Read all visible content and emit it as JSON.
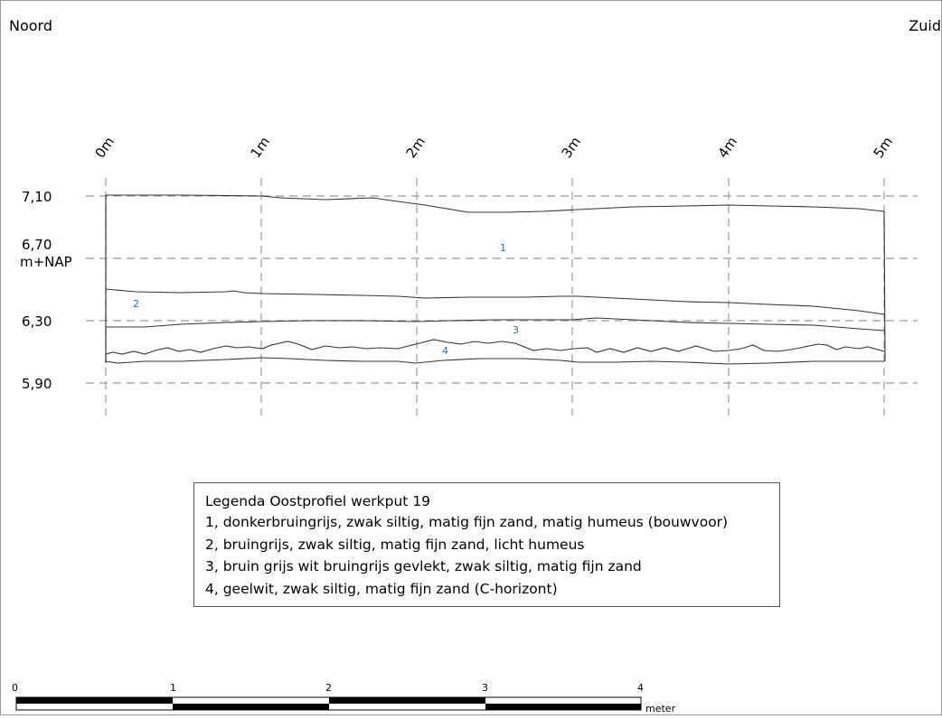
{
  "orientation": {
    "left": "Noord",
    "right": "Zuid"
  },
  "meter_marks": [
    "0m",
    "1m",
    "2m",
    "3m",
    "4m",
    "5m"
  ],
  "elevation_labels": [
    "7,10",
    "6,70",
    "6,30",
    "5,90"
  ],
  "elevation_unit": "m+NAP",
  "layer_numbers": [
    "1",
    "2",
    "3",
    "4"
  ],
  "legend": {
    "title": "Legenda Oostprofiel werkput 19",
    "entries": [
      "1, donkerbruingrijs, zwak siltig, matig fijn zand, matig humeus (bouwvoor)",
      "2, bruingrijs, zwak siltig, matig fijn zand, licht humeus",
      "3, bruin grijs wit bruingrijs gevlekt, zwak siltig, matig fijn zand",
      "4, geelwit, zwak siltig, matig fijn zand (C-horizont)"
    ]
  },
  "scale_bar": {
    "ticks": [
      "0",
      "1",
      "2",
      "3",
      "4"
    ],
    "unit": "meter"
  },
  "colors": {
    "line": "#333333",
    "grid": "#aaaaaa",
    "layer_label": "#1e6fb5",
    "frame": "#999999"
  }
}
